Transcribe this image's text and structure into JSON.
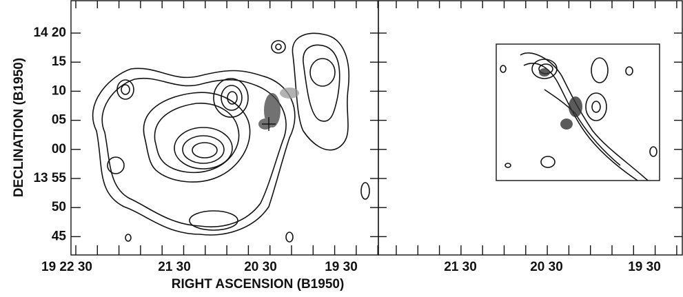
{
  "figure": {
    "y_axis_title": "DECLINATION (B1950)",
    "x_axis_title": "RIGHT ASCENSION (B1950)",
    "left_panel": {
      "y_ticks": [
        "14 20",
        "15",
        "10",
        "05",
        "00",
        "13 55",
        "50",
        "45"
      ],
      "x_ticks": [
        "19 22 30",
        "21 30",
        "20 30",
        "19 30"
      ]
    },
    "right_panel": {
      "x_ticks": [
        "21 30",
        "20 30",
        "19 30"
      ]
    }
  }
}
